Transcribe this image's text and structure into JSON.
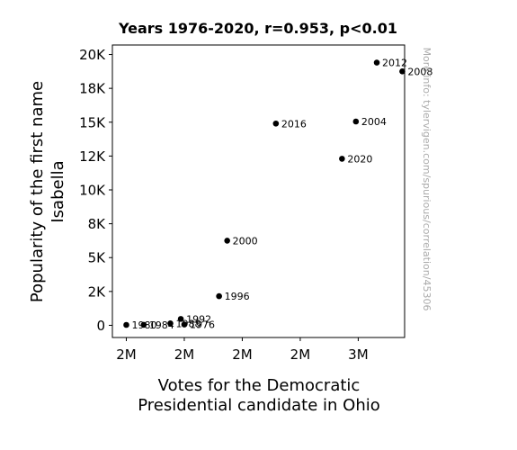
{
  "chart_data": {
    "type": "scatter",
    "title": "Years 1976-2020, r=0.953, p<0.01",
    "xlabel": [
      "Votes for the Democratic",
      "Presidential candidate in Ohio"
    ],
    "ylabel": [
      "Popularity of the first name",
      "Isabella"
    ],
    "watermark": "More info: tylervigen.com/spurious/correlation/45306",
    "x_tick_labels": [
      "2M",
      "2M",
      "2M",
      "2M",
      "3M"
    ],
    "x_tick_values": [
      1750000,
      2000000,
      2250000,
      2500000,
      2750000
    ],
    "y_tick_labels": [
      "0",
      "2K",
      "5K",
      "8K",
      "10K",
      "12K",
      "15K",
      "18K",
      "20K"
    ],
    "y_tick_values": [
      0,
      2500,
      5000,
      7500,
      10000,
      12500,
      15000,
      17500,
      20000
    ],
    "xlim": [
      1690000,
      2950000
    ],
    "ylim": [
      -900,
      20700
    ],
    "grid": false,
    "marker_color": "#000000",
    "points": [
      {
        "label": "1976",
        "x": 2000000,
        "y": 60
      },
      {
        "label": "1980",
        "x": 1750000,
        "y": 30
      },
      {
        "label": "1984",
        "x": 1825000,
        "y": 35
      },
      {
        "label": "1988",
        "x": 1940000,
        "y": 140
      },
      {
        "label": "1992",
        "x": 1985000,
        "y": 470
      },
      {
        "label": "1996",
        "x": 2150000,
        "y": 2150
      },
      {
        "label": "2000",
        "x": 2185000,
        "y": 6250
      },
      {
        "label": "2004",
        "x": 2740000,
        "y": 15050
      },
      {
        "label": "2008",
        "x": 2940000,
        "y": 18750
      },
      {
        "label": "2012",
        "x": 2830000,
        "y": 19400
      },
      {
        "label": "2016",
        "x": 2395000,
        "y": 14900
      },
      {
        "label": "2020",
        "x": 2680000,
        "y": 12300
      }
    ]
  }
}
